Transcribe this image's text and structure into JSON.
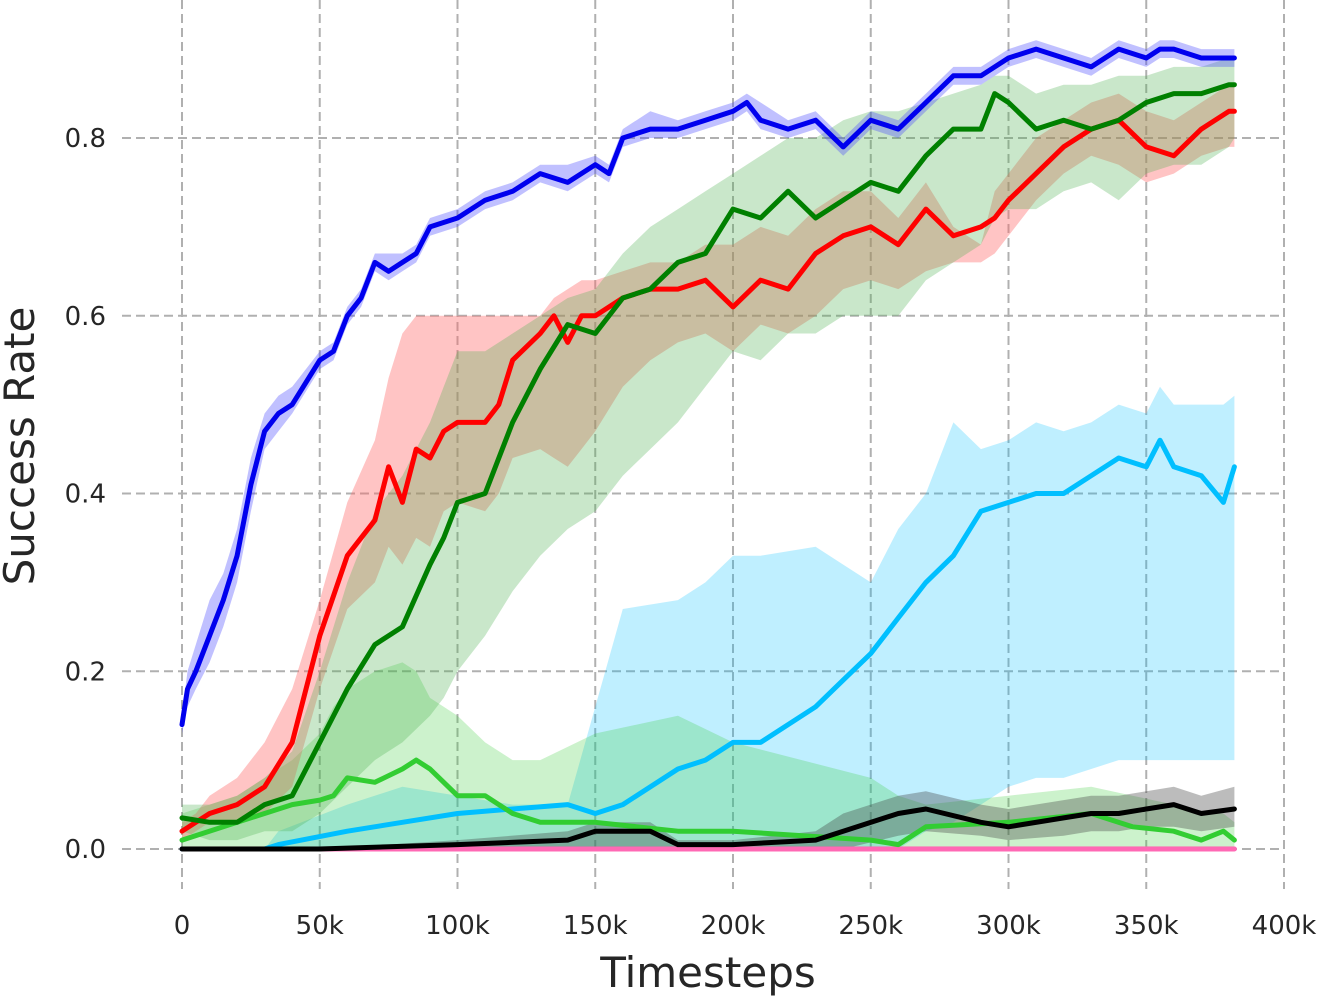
{
  "chart_data": {
    "type": "line",
    "title": "",
    "xlabel": "Timesteps",
    "ylabel": "Success Rate",
    "xlim": [
      0,
      400000
    ],
    "ylim": [
      0,
      0.9
    ],
    "grid": true,
    "legend": "none",
    "x_ticks": [
      {
        "value": 0,
        "label": "0"
      },
      {
        "value": 50000,
        "label": "50k"
      },
      {
        "value": 100000,
        "label": "100k"
      },
      {
        "value": 150000,
        "label": "150k"
      },
      {
        "value": 200000,
        "label": "200k"
      },
      {
        "value": 250000,
        "label": "250k"
      },
      {
        "value": 300000,
        "label": "300k"
      },
      {
        "value": 350000,
        "label": "350k"
      },
      {
        "value": 400000,
        "label": "400k"
      }
    ],
    "y_ticks": [
      {
        "value": 0.0,
        "label": "0.0"
      },
      {
        "value": 0.2,
        "label": "0.2"
      },
      {
        "value": 0.4,
        "label": "0.4"
      },
      {
        "value": 0.6,
        "label": "0.6"
      },
      {
        "value": 0.8,
        "label": "0.8"
      }
    ],
    "series": [
      {
        "color": "#ff69b4",
        "band_color": "#ff69b4",
        "band_opacity": 0.25,
        "x": [
          0,
          100000,
          200000,
          300000,
          382000
        ],
        "y": [
          0.0,
          0.0,
          0.0,
          0.0,
          0.0
        ],
        "lower": [
          0.0,
          0.0,
          0.0,
          0.0,
          0.0
        ],
        "upper": [
          0.003,
          0.003,
          0.003,
          0.003,
          0.003
        ]
      },
      {
        "color": "#00bfff",
        "band_color": "#00bfff",
        "band_opacity": 0.25,
        "x": [
          0,
          30000,
          35000,
          60000,
          80000,
          100000,
          120000,
          140000,
          150000,
          160000,
          180000,
          190000,
          200000,
          210000,
          230000,
          240000,
          250000,
          260000,
          270000,
          280000,
          290000,
          300000,
          310000,
          320000,
          330000,
          340000,
          350000,
          355000,
          360000,
          370000,
          378000,
          382000
        ],
        "y": [
          0.0,
          0.0,
          0.005,
          0.02,
          0.03,
          0.04,
          0.045,
          0.05,
          0.04,
          0.05,
          0.09,
          0.1,
          0.12,
          0.12,
          0.16,
          0.19,
          0.22,
          0.26,
          0.3,
          0.33,
          0.38,
          0.39,
          0.4,
          0.4,
          0.42,
          0.44,
          0.43,
          0.46,
          0.43,
          0.42,
          0.39,
          0.43
        ],
        "lower": [
          0.0,
          0.0,
          0.0,
          0.0,
          0.0,
          0.0,
          0.0,
          0.0,
          0.0,
          0.0,
          0.0,
          0.0,
          0.0,
          0.0,
          0.0,
          0.0,
          0.0,
          0.0,
          0.02,
          0.03,
          0.05,
          0.07,
          0.08,
          0.08,
          0.09,
          0.1,
          0.1,
          0.1,
          0.1,
          0.1,
          0.1,
          0.1
        ],
        "upper": [
          0.0,
          0.0,
          0.02,
          0.05,
          0.07,
          0.06,
          0.05,
          0.05,
          0.16,
          0.27,
          0.28,
          0.3,
          0.33,
          0.33,
          0.34,
          0.32,
          0.3,
          0.36,
          0.4,
          0.48,
          0.45,
          0.46,
          0.48,
          0.47,
          0.48,
          0.5,
          0.49,
          0.52,
          0.5,
          0.5,
          0.5,
          0.51
        ]
      },
      {
        "color": "#32cd32",
        "band_color": "#32cd32",
        "band_opacity": 0.25,
        "x": [
          0,
          20000,
          40000,
          50000,
          55000,
          60000,
          70000,
          80000,
          85000,
          90000,
          100000,
          110000,
          120000,
          130000,
          150000,
          180000,
          200000,
          250000,
          260000,
          270000,
          300000,
          330000,
          345000,
          360000,
          370000,
          378000,
          382000
        ],
        "y": [
          0.01,
          0.03,
          0.05,
          0.055,
          0.06,
          0.08,
          0.075,
          0.09,
          0.1,
          0.09,
          0.06,
          0.06,
          0.04,
          0.03,
          0.03,
          0.02,
          0.02,
          0.01,
          0.005,
          0.025,
          0.03,
          0.04,
          0.025,
          0.02,
          0.01,
          0.02,
          0.01
        ],
        "lower": [
          0.0,
          0.0,
          0.0,
          0.0,
          0.0,
          0.0,
          0.0,
          0.0,
          0.0,
          0.0,
          0.0,
          0.0,
          0.0,
          0.0,
          0.0,
          0.0,
          0.0,
          0.0,
          0.0,
          0.0,
          0.0,
          0.0,
          0.0,
          0.0,
          0.0,
          0.0,
          0.0
        ],
        "upper": [
          0.04,
          0.06,
          0.1,
          0.13,
          0.16,
          0.18,
          0.2,
          0.21,
          0.2,
          0.17,
          0.15,
          0.12,
          0.1,
          0.1,
          0.13,
          0.15,
          0.12,
          0.08,
          0.06,
          0.05,
          0.06,
          0.07,
          0.06,
          0.05,
          0.04,
          0.04,
          0.03
        ]
      },
      {
        "color": "#000000",
        "band_color": "#404040",
        "band_opacity": 0.35,
        "x": [
          0,
          50000,
          100000,
          140000,
          150000,
          170000,
          180000,
          200000,
          230000,
          240000,
          260000,
          270000,
          290000,
          300000,
          320000,
          330000,
          340000,
          350000,
          360000,
          370000,
          382000
        ],
        "y": [
          0.0,
          0.0,
          0.005,
          0.01,
          0.02,
          0.02,
          0.005,
          0.005,
          0.01,
          0.02,
          0.04,
          0.045,
          0.03,
          0.025,
          0.035,
          0.04,
          0.04,
          0.045,
          0.05,
          0.04,
          0.045
        ],
        "lower": [
          0.0,
          0.0,
          0.0,
          0.0,
          0.0,
          0.0,
          0.0,
          0.0,
          0.0,
          0.0,
          0.015,
          0.02,
          0.015,
          0.01,
          0.015,
          0.02,
          0.02,
          0.025,
          0.025,
          0.02,
          0.025
        ],
        "upper": [
          0.0,
          0.0,
          0.01,
          0.02,
          0.03,
          0.03,
          0.01,
          0.01,
          0.02,
          0.04,
          0.06,
          0.065,
          0.05,
          0.045,
          0.055,
          0.06,
          0.06,
          0.065,
          0.07,
          0.06,
          0.07
        ]
      },
      {
        "color": "#ff0000",
        "band_color": "#ff6b6b",
        "band_opacity": 0.4,
        "x": [
          0,
          5000,
          10000,
          20000,
          30000,
          40000,
          50000,
          60000,
          70000,
          75000,
          80000,
          85000,
          90000,
          95000,
          100000,
          110000,
          115000,
          120000,
          130000,
          135000,
          140000,
          145000,
          150000,
          160000,
          170000,
          180000,
          190000,
          200000,
          210000,
          220000,
          230000,
          240000,
          250000,
          260000,
          270000,
          280000,
          290000,
          295000,
          300000,
          310000,
          320000,
          330000,
          340000,
          350000,
          360000,
          370000,
          380000,
          382000
        ],
        "y": [
          0.02,
          0.03,
          0.04,
          0.05,
          0.07,
          0.12,
          0.24,
          0.33,
          0.37,
          0.43,
          0.39,
          0.45,
          0.44,
          0.47,
          0.48,
          0.48,
          0.5,
          0.55,
          0.58,
          0.6,
          0.57,
          0.6,
          0.6,
          0.62,
          0.63,
          0.63,
          0.64,
          0.61,
          0.64,
          0.63,
          0.67,
          0.69,
          0.7,
          0.68,
          0.72,
          0.69,
          0.7,
          0.71,
          0.73,
          0.76,
          0.79,
          0.81,
          0.82,
          0.79,
          0.78,
          0.81,
          0.83,
          0.83
        ],
        "lower": [
          0.01,
          0.02,
          0.03,
          0.03,
          0.04,
          0.07,
          0.18,
          0.27,
          0.3,
          0.34,
          0.32,
          0.35,
          0.34,
          0.38,
          0.39,
          0.38,
          0.4,
          0.44,
          0.45,
          0.44,
          0.43,
          0.45,
          0.47,
          0.52,
          0.55,
          0.57,
          0.58,
          0.56,
          0.59,
          0.58,
          0.6,
          0.63,
          0.64,
          0.63,
          0.65,
          0.66,
          0.66,
          0.67,
          0.69,
          0.73,
          0.76,
          0.78,
          0.77,
          0.75,
          0.76,
          0.78,
          0.79,
          0.79
        ],
        "upper": [
          0.03,
          0.04,
          0.06,
          0.08,
          0.12,
          0.18,
          0.28,
          0.39,
          0.46,
          0.53,
          0.58,
          0.6,
          0.6,
          0.6,
          0.6,
          0.6,
          0.6,
          0.6,
          0.6,
          0.62,
          0.63,
          0.64,
          0.64,
          0.65,
          0.66,
          0.66,
          0.68,
          0.68,
          0.7,
          0.69,
          0.72,
          0.74,
          0.74,
          0.71,
          0.75,
          0.7,
          0.68,
          0.74,
          0.76,
          0.8,
          0.82,
          0.84,
          0.85,
          0.83,
          0.82,
          0.84,
          0.86,
          0.86
        ]
      },
      {
        "color": "#008000",
        "band_color": "#4caf50",
        "band_opacity": 0.3,
        "x": [
          0,
          10000,
          20000,
          30000,
          40000,
          50000,
          60000,
          70000,
          80000,
          90000,
          95000,
          100000,
          110000,
          120000,
          130000,
          140000,
          150000,
          160000,
          170000,
          180000,
          190000,
          200000,
          210000,
          220000,
          230000,
          240000,
          250000,
          260000,
          270000,
          280000,
          290000,
          295000,
          300000,
          310000,
          320000,
          330000,
          340000,
          350000,
          360000,
          370000,
          380000,
          382000
        ],
        "y": [
          0.035,
          0.03,
          0.03,
          0.05,
          0.06,
          0.12,
          0.18,
          0.23,
          0.25,
          0.32,
          0.35,
          0.39,
          0.4,
          0.48,
          0.54,
          0.59,
          0.58,
          0.62,
          0.63,
          0.66,
          0.67,
          0.72,
          0.71,
          0.74,
          0.71,
          0.73,
          0.75,
          0.74,
          0.78,
          0.81,
          0.81,
          0.85,
          0.84,
          0.81,
          0.82,
          0.81,
          0.82,
          0.84,
          0.85,
          0.85,
          0.86,
          0.86
        ],
        "lower": [
          0.02,
          0.01,
          0.01,
          0.02,
          0.02,
          0.04,
          0.07,
          0.1,
          0.12,
          0.15,
          0.17,
          0.2,
          0.24,
          0.29,
          0.33,
          0.36,
          0.38,
          0.42,
          0.45,
          0.48,
          0.52,
          0.56,
          0.55,
          0.58,
          0.58,
          0.6,
          0.6,
          0.6,
          0.64,
          0.66,
          0.68,
          0.71,
          0.72,
          0.72,
          0.74,
          0.75,
          0.73,
          0.76,
          0.77,
          0.77,
          0.79,
          0.8
        ],
        "upper": [
          0.05,
          0.05,
          0.06,
          0.08,
          0.11,
          0.2,
          0.3,
          0.38,
          0.42,
          0.48,
          0.52,
          0.56,
          0.56,
          0.58,
          0.6,
          0.62,
          0.63,
          0.67,
          0.7,
          0.72,
          0.74,
          0.76,
          0.78,
          0.8,
          0.8,
          0.82,
          0.83,
          0.83,
          0.84,
          0.85,
          0.86,
          0.87,
          0.87,
          0.85,
          0.86,
          0.86,
          0.87,
          0.87,
          0.88,
          0.88,
          0.89,
          0.89
        ]
      },
      {
        "color": "#0000ee",
        "band_color": "#4a4aff",
        "band_opacity": 0.35,
        "x": [
          0,
          2000,
          5000,
          10000,
          15000,
          20000,
          25000,
          30000,
          35000,
          40000,
          50000,
          55000,
          60000,
          65000,
          70000,
          75000,
          80000,
          85000,
          90000,
          100000,
          110000,
          120000,
          130000,
          140000,
          150000,
          155000,
          160000,
          170000,
          180000,
          190000,
          200000,
          205000,
          210000,
          220000,
          230000,
          240000,
          250000,
          260000,
          270000,
          280000,
          290000,
          300000,
          310000,
          320000,
          330000,
          340000,
          350000,
          355000,
          360000,
          370000,
          380000,
          382000
        ],
        "y": [
          0.14,
          0.18,
          0.2,
          0.24,
          0.28,
          0.33,
          0.41,
          0.47,
          0.49,
          0.5,
          0.55,
          0.56,
          0.6,
          0.62,
          0.66,
          0.65,
          0.66,
          0.67,
          0.7,
          0.71,
          0.73,
          0.74,
          0.76,
          0.75,
          0.77,
          0.76,
          0.8,
          0.81,
          0.81,
          0.82,
          0.83,
          0.84,
          0.82,
          0.81,
          0.82,
          0.79,
          0.82,
          0.81,
          0.84,
          0.87,
          0.87,
          0.89,
          0.9,
          0.89,
          0.88,
          0.9,
          0.89,
          0.9,
          0.9,
          0.89,
          0.89,
          0.89
        ],
        "lower": [
          0.13,
          0.16,
          0.18,
          0.21,
          0.25,
          0.3,
          0.38,
          0.45,
          0.47,
          0.49,
          0.54,
          0.55,
          0.59,
          0.61,
          0.65,
          0.64,
          0.65,
          0.66,
          0.69,
          0.7,
          0.72,
          0.73,
          0.75,
          0.74,
          0.76,
          0.75,
          0.79,
          0.8,
          0.8,
          0.81,
          0.82,
          0.83,
          0.81,
          0.8,
          0.81,
          0.78,
          0.81,
          0.8,
          0.83,
          0.86,
          0.86,
          0.88,
          0.89,
          0.88,
          0.87,
          0.89,
          0.88,
          0.89,
          0.89,
          0.88,
          0.88,
          0.88
        ],
        "upper": [
          0.15,
          0.2,
          0.23,
          0.28,
          0.31,
          0.36,
          0.44,
          0.49,
          0.51,
          0.52,
          0.56,
          0.57,
          0.61,
          0.63,
          0.67,
          0.67,
          0.67,
          0.68,
          0.71,
          0.72,
          0.74,
          0.75,
          0.77,
          0.77,
          0.78,
          0.77,
          0.81,
          0.83,
          0.82,
          0.83,
          0.84,
          0.85,
          0.84,
          0.82,
          0.83,
          0.8,
          0.83,
          0.82,
          0.85,
          0.88,
          0.88,
          0.9,
          0.91,
          0.9,
          0.89,
          0.91,
          0.9,
          0.91,
          0.91,
          0.9,
          0.9,
          0.9
        ]
      }
    ]
  }
}
